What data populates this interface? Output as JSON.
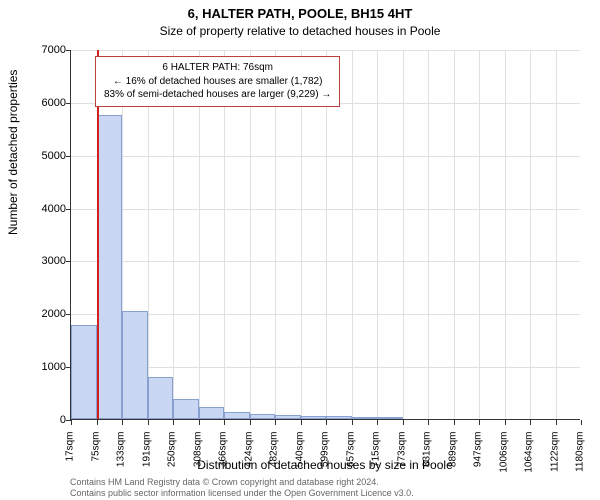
{
  "header": {
    "address": "6, HALTER PATH, POOLE, BH15 4HT",
    "subtitle": "Size of property relative to detached houses in Poole"
  },
  "chart": {
    "type": "histogram",
    "ylim": [
      0,
      7000
    ],
    "ytick_step": 1000,
    "yticks": [
      0,
      1000,
      2000,
      3000,
      4000,
      5000,
      6000,
      7000
    ],
    "xtick_labels": [
      "17sqm",
      "75sqm",
      "133sqm",
      "191sqm",
      "250sqm",
      "308sqm",
      "366sqm",
      "424sqm",
      "482sqm",
      "540sqm",
      "599sqm",
      "657sqm",
      "715sqm",
      "773sqm",
      "831sqm",
      "889sqm",
      "947sqm",
      "1006sqm",
      "1064sqm",
      "1122sqm",
      "1180sqm"
    ],
    "bars": [
      1780,
      5750,
      2050,
      800,
      380,
      220,
      130,
      90,
      70,
      55,
      50,
      45,
      40,
      0,
      0,
      0,
      0,
      0,
      0,
      0
    ],
    "bar_fill": "#c9d7f2",
    "bar_stroke": "#88a0d0",
    "grid_color": "#e0e0e0",
    "background_color": "#ffffff",
    "marker": {
      "value": 76,
      "color": "#d02020",
      "bin_index": 1,
      "position_in_bin": 0.02
    },
    "ylabel": "Number of detached properties",
    "xlabel": "Distribution of detached houses by size in Poole"
  },
  "infobox": {
    "line1": "6 HALTER PATH: 76sqm",
    "line2": "← 16% of detached houses are smaller (1,782)",
    "line3": "83% of semi-detached houses are larger (9,229) →"
  },
  "footer": {
    "line1": "Contains HM Land Registry data © Crown copyright and database right 2024.",
    "line2": "Contains public sector information licensed under the Open Government Licence v3.0."
  }
}
